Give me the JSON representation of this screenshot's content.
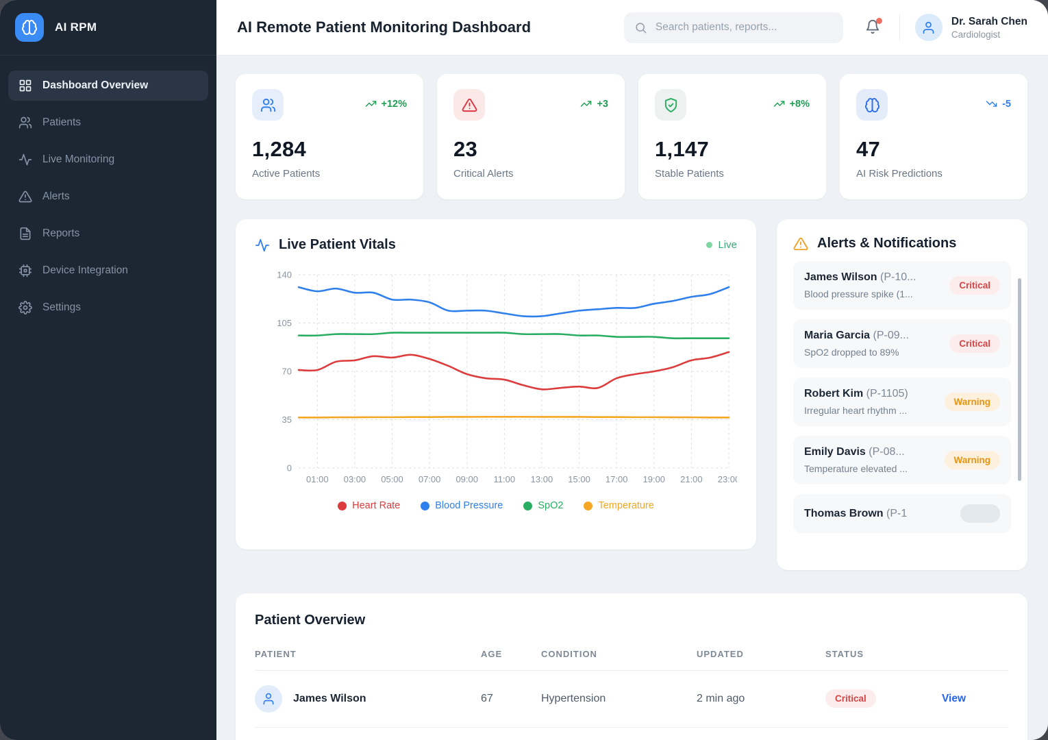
{
  "app": {
    "brand": "AI RPM"
  },
  "sidebar": {
    "items": [
      {
        "label": "Dashboard Overview",
        "icon": "dashboard-icon",
        "active": true
      },
      {
        "label": "Patients",
        "icon": "patients-icon",
        "active": false
      },
      {
        "label": "Live Monitoring",
        "icon": "activity-icon",
        "active": false
      },
      {
        "label": "Alerts",
        "icon": "alert-triangle-icon",
        "active": false
      },
      {
        "label": "Reports",
        "icon": "report-icon",
        "active": false
      },
      {
        "label": "Device Integration",
        "icon": "device-icon",
        "active": false
      },
      {
        "label": "Settings",
        "icon": "settings-icon",
        "active": false
      }
    ]
  },
  "header": {
    "title": "AI Remote Patient Monitoring Dashboard",
    "search_placeholder": "Search patients, reports...",
    "user_name": "Dr. Sarah Chen",
    "user_role": "Cardiologist"
  },
  "stats": [
    {
      "icon": "patients-icon",
      "theme": "blue",
      "trend": "+12%",
      "trend_dir": "up",
      "value": "1,284",
      "label": "Active Patients"
    },
    {
      "icon": "alert-triangle-icon",
      "theme": "red",
      "trend": "+3",
      "trend_dir": "up",
      "value": "23",
      "label": "Critical Alerts"
    },
    {
      "icon": "shield-check-icon",
      "theme": "green",
      "trend": "+8%",
      "trend_dir": "up",
      "value": "1,147",
      "label": "Stable Patients"
    },
    {
      "icon": "brain-icon",
      "theme": "indigo",
      "trend": "-5",
      "trend_dir": "down",
      "value": "47",
      "label": "AI Risk Predictions"
    }
  ],
  "vitals": {
    "title": "Live Patient Vitals",
    "live_label": "Live"
  },
  "chart_data": {
    "type": "line",
    "title": "Live Patient Vitals",
    "x_hours": [
      0,
      1,
      2,
      3,
      4,
      5,
      6,
      7,
      8,
      9,
      10,
      11,
      12,
      13,
      14,
      15,
      16,
      17,
      18,
      19,
      20,
      21,
      22,
      23
    ],
    "x_tick_labels": [
      "01:00",
      "03:00",
      "05:00",
      "07:00",
      "09:00",
      "11:00",
      "13:00",
      "15:00",
      "17:00",
      "19:00",
      "21:00",
      "23:00"
    ],
    "x_tick_hours": [
      1,
      3,
      5,
      7,
      9,
      11,
      13,
      15,
      17,
      19,
      21,
      23
    ],
    "ylim": [
      0,
      140
    ],
    "y_ticks": [
      0,
      35,
      70,
      105,
      140
    ],
    "grid": "dashed",
    "legend_position": "bottom",
    "series": [
      {
        "name": "Heart Rate",
        "color": "#dd3c3c",
        "values": [
          71,
          71,
          77,
          78,
          81,
          80,
          82,
          79,
          74,
          68,
          65,
          64,
          60,
          57,
          58,
          59,
          58,
          65,
          68,
          70,
          73,
          78,
          80,
          84
        ]
      },
      {
        "name": "Blood Pressure",
        "color": "#2f80ed",
        "values": [
          131,
          128,
          130,
          127,
          127,
          122,
          122,
          120,
          114,
          114,
          114,
          112,
          110,
          110,
          112,
          114,
          115,
          116,
          116,
          119,
          121,
          124,
          126,
          131
        ]
      },
      {
        "name": "SpO2",
        "color": "#27ae60",
        "values": [
          96,
          96,
          97,
          97,
          97,
          98,
          98,
          98,
          98,
          98,
          98,
          98,
          97,
          97,
          97,
          96,
          96,
          95,
          95,
          95,
          94,
          94,
          94,
          94
        ]
      },
      {
        "name": "Temperature",
        "color": "#f5a623",
        "values": [
          36.6,
          36.6,
          36.7,
          36.7,
          36.8,
          36.8,
          36.9,
          36.9,
          37,
          37,
          37.1,
          37.1,
          37.1,
          37,
          37,
          37,
          36.9,
          36.9,
          36.8,
          36.8,
          36.7,
          36.7,
          36.6,
          36.6
        ]
      }
    ]
  },
  "alerts": {
    "title": "Alerts & Notifications",
    "items": [
      {
        "name": "James Wilson",
        "id": "(P-10...",
        "desc": "Blood pressure spike (1...",
        "badge": "Critical",
        "type": "critical"
      },
      {
        "name": "Maria Garcia",
        "id": "(P-09...",
        "desc": "SpO2 dropped to 89%",
        "badge": "Critical",
        "type": "critical"
      },
      {
        "name": "Robert Kim",
        "id": "(P-1105)",
        "desc": "Irregular heart rhythm ...",
        "badge": "Warning",
        "type": "warning"
      },
      {
        "name": "Emily Davis",
        "id": "(P-08...",
        "desc": "Temperature elevated ...",
        "badge": "Warning",
        "type": "warning"
      },
      {
        "name": "Thomas Brown",
        "id": "(P-1",
        "desc": "",
        "badge": "",
        "type": "muted"
      }
    ]
  },
  "patients": {
    "title": "Patient Overview",
    "columns": [
      "PATIENT",
      "AGE",
      "CONDITION",
      "UPDATED",
      "STATUS"
    ],
    "rows": [
      {
        "name": "James Wilson",
        "age": "67",
        "condition": "Hypertension",
        "updated": "2 min ago",
        "status": "Critical",
        "status_type": "critical",
        "action": "View"
      }
    ]
  }
}
